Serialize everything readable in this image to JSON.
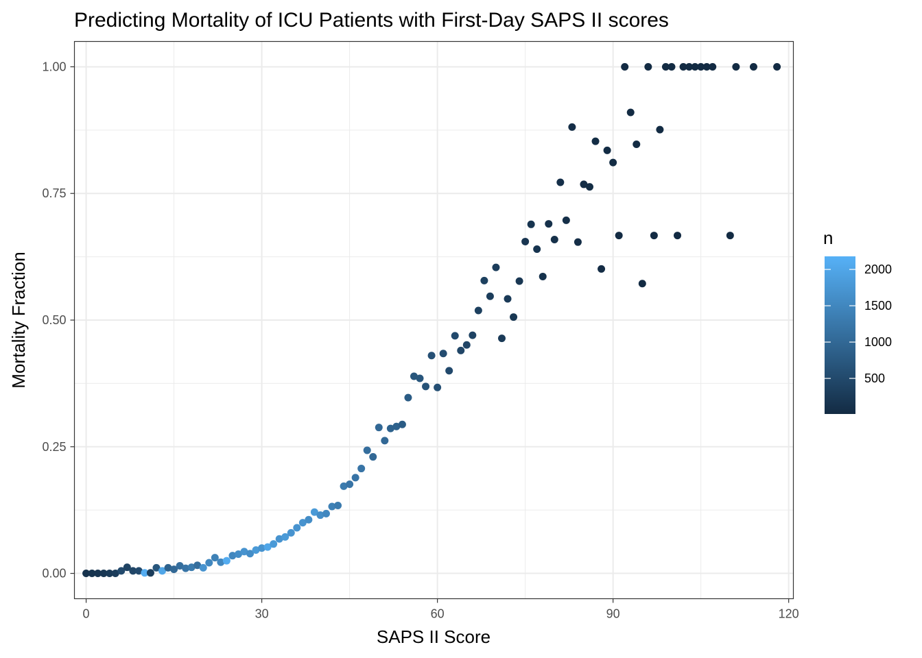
{
  "chart_data": {
    "type": "scatter",
    "title": "Predicting Mortality of ICU Patients with First-Day SAPS II scores",
    "xlabel": "SAPS II Score",
    "ylabel": "Mortality Fraction",
    "xlim": [
      -2,
      120.8
    ],
    "ylim": [
      -0.05,
      1.05
    ],
    "xticks": [
      0,
      30,
      60,
      90,
      120
    ],
    "xtick_labels": [
      "0",
      "30",
      "60",
      "90",
      "120"
    ],
    "yticks": [
      0,
      0.25,
      0.5,
      0.75,
      1
    ],
    "ytick_labels": [
      "0.00",
      "0.25",
      "0.50",
      "0.75",
      "1.00"
    ],
    "grid": true,
    "legend": {
      "title": "n",
      "position": "right",
      "type": "colorbar",
      "range": [
        10,
        2180
      ],
      "breaks": [
        500,
        1000,
        1500,
        2000
      ],
      "break_labels": [
        "500",
        "1000",
        "1500",
        "2000"
      ],
      "color_low": "#132b43",
      "color_high": "#56b1f7"
    },
    "points": [
      {
        "x": 0,
        "y": 0.0,
        "n": 120
      },
      {
        "x": 1,
        "y": 0.0,
        "n": 150
      },
      {
        "x": 2,
        "y": 0.0,
        "n": 180
      },
      {
        "x": 3,
        "y": 0.0,
        "n": 200
      },
      {
        "x": 4,
        "y": 0.0,
        "n": 250
      },
      {
        "x": 5,
        "y": 0.0,
        "n": 300
      },
      {
        "x": 6,
        "y": 0.005,
        "n": 500
      },
      {
        "x": 7,
        "y": 0.012,
        "n": 400
      },
      {
        "x": 8,
        "y": 0.005,
        "n": 450
      },
      {
        "x": 9,
        "y": 0.005,
        "n": 500
      },
      {
        "x": 10,
        "y": 0.001,
        "n": 2100
      },
      {
        "x": 11,
        "y": 0.001,
        "n": 300
      },
      {
        "x": 12,
        "y": 0.011,
        "n": 700
      },
      {
        "x": 13,
        "y": 0.005,
        "n": 2000
      },
      {
        "x": 14,
        "y": 0.011,
        "n": 900
      },
      {
        "x": 15,
        "y": 0.008,
        "n": 1000
      },
      {
        "x": 16,
        "y": 0.015,
        "n": 1100
      },
      {
        "x": 17,
        "y": 0.01,
        "n": 1200
      },
      {
        "x": 18,
        "y": 0.012,
        "n": 1300
      },
      {
        "x": 19,
        "y": 0.016,
        "n": 1100
      },
      {
        "x": 20,
        "y": 0.011,
        "n": 1700
      },
      {
        "x": 21,
        "y": 0.021,
        "n": 1500
      },
      {
        "x": 22,
        "y": 0.031,
        "n": 1400
      },
      {
        "x": 23,
        "y": 0.022,
        "n": 1500
      },
      {
        "x": 24,
        "y": 0.025,
        "n": 2100
      },
      {
        "x": 25,
        "y": 0.035,
        "n": 1500
      },
      {
        "x": 26,
        "y": 0.038,
        "n": 1600
      },
      {
        "x": 27,
        "y": 0.043,
        "n": 1700
      },
      {
        "x": 28,
        "y": 0.039,
        "n": 1600
      },
      {
        "x": 29,
        "y": 0.046,
        "n": 1800
      },
      {
        "x": 30,
        "y": 0.05,
        "n": 1700
      },
      {
        "x": 31,
        "y": 0.052,
        "n": 2000
      },
      {
        "x": 32,
        "y": 0.058,
        "n": 1800
      },
      {
        "x": 33,
        "y": 0.068,
        "n": 1700
      },
      {
        "x": 34,
        "y": 0.072,
        "n": 1800
      },
      {
        "x": 35,
        "y": 0.08,
        "n": 1700
      },
      {
        "x": 36,
        "y": 0.09,
        "n": 1700
      },
      {
        "x": 37,
        "y": 0.1,
        "n": 1700
      },
      {
        "x": 38,
        "y": 0.106,
        "n": 1600
      },
      {
        "x": 39,
        "y": 0.121,
        "n": 1800
      },
      {
        "x": 40,
        "y": 0.115,
        "n": 1600
      },
      {
        "x": 41,
        "y": 0.118,
        "n": 1500
      },
      {
        "x": 42,
        "y": 0.132,
        "n": 1400
      },
      {
        "x": 43,
        "y": 0.134,
        "n": 1300
      },
      {
        "x": 44,
        "y": 0.172,
        "n": 1300
      },
      {
        "x": 45,
        "y": 0.176,
        "n": 1200
      },
      {
        "x": 46,
        "y": 0.189,
        "n": 1200
      },
      {
        "x": 47,
        "y": 0.207,
        "n": 1200
      },
      {
        "x": 48,
        "y": 0.243,
        "n": 1100
      },
      {
        "x": 49,
        "y": 0.23,
        "n": 1000
      },
      {
        "x": 50,
        "y": 0.288,
        "n": 1000
      },
      {
        "x": 51,
        "y": 0.262,
        "n": 1000
      },
      {
        "x": 52,
        "y": 0.286,
        "n": 900
      },
      {
        "x": 53,
        "y": 0.29,
        "n": 900
      },
      {
        "x": 54,
        "y": 0.294,
        "n": 800
      },
      {
        "x": 55,
        "y": 0.347,
        "n": 800
      },
      {
        "x": 56,
        "y": 0.389,
        "n": 700
      },
      {
        "x": 57,
        "y": 0.385,
        "n": 700
      },
      {
        "x": 58,
        "y": 0.369,
        "n": 650
      },
      {
        "x": 59,
        "y": 0.43,
        "n": 600
      },
      {
        "x": 60,
        "y": 0.367,
        "n": 600
      },
      {
        "x": 61,
        "y": 0.434,
        "n": 550
      },
      {
        "x": 62,
        "y": 0.4,
        "n": 500
      },
      {
        "x": 63,
        "y": 0.469,
        "n": 500
      },
      {
        "x": 64,
        "y": 0.44,
        "n": 450
      },
      {
        "x": 65,
        "y": 0.451,
        "n": 450
      },
      {
        "x": 66,
        "y": 0.47,
        "n": 400
      },
      {
        "x": 67,
        "y": 0.519,
        "n": 350
      },
      {
        "x": 68,
        "y": 0.578,
        "n": 350
      },
      {
        "x": 69,
        "y": 0.547,
        "n": 300
      },
      {
        "x": 70,
        "y": 0.604,
        "n": 300
      },
      {
        "x": 71,
        "y": 0.464,
        "n": 250
      },
      {
        "x": 72,
        "y": 0.542,
        "n": 250
      },
      {
        "x": 73,
        "y": 0.506,
        "n": 200
      },
      {
        "x": 74,
        "y": 0.577,
        "n": 200
      },
      {
        "x": 75,
        "y": 0.655,
        "n": 180
      },
      {
        "x": 76,
        "y": 0.689,
        "n": 150
      },
      {
        "x": 77,
        "y": 0.64,
        "n": 150
      },
      {
        "x": 78,
        "y": 0.586,
        "n": 120
      },
      {
        "x": 79,
        "y": 0.69,
        "n": 110
      },
      {
        "x": 80,
        "y": 0.659,
        "n": 100
      },
      {
        "x": 81,
        "y": 0.772,
        "n": 80
      },
      {
        "x": 82,
        "y": 0.697,
        "n": 70
      },
      {
        "x": 83,
        "y": 0.881,
        "n": 60
      },
      {
        "x": 84,
        "y": 0.654,
        "n": 60
      },
      {
        "x": 85,
        "y": 0.768,
        "n": 50
      },
      {
        "x": 86,
        "y": 0.763,
        "n": 40
      },
      {
        "x": 87,
        "y": 0.853,
        "n": 35
      },
      {
        "x": 88,
        "y": 0.601,
        "n": 30
      },
      {
        "x": 89,
        "y": 0.835,
        "n": 25
      },
      {
        "x": 90,
        "y": 0.811,
        "n": 20
      },
      {
        "x": 91,
        "y": 0.667,
        "n": 15
      },
      {
        "x": 92,
        "y": 1.0,
        "n": 10
      },
      {
        "x": 93,
        "y": 0.91,
        "n": 12
      },
      {
        "x": 94,
        "y": 0.847,
        "n": 12
      },
      {
        "x": 95,
        "y": 0.572,
        "n": 10
      },
      {
        "x": 96,
        "y": 1.0,
        "n": 8
      },
      {
        "x": 97,
        "y": 0.667,
        "n": 6
      },
      {
        "x": 98,
        "y": 0.876,
        "n": 8
      },
      {
        "x": 99,
        "y": 1.0,
        "n": 5
      },
      {
        "x": 100,
        "y": 1.0,
        "n": 4
      },
      {
        "x": 101,
        "y": 0.667,
        "n": 3
      },
      {
        "x": 102,
        "y": 1.0,
        "n": 3
      },
      {
        "x": 103,
        "y": 1.0,
        "n": 3
      },
      {
        "x": 104,
        "y": 1.0,
        "n": 2
      },
      {
        "x": 105,
        "y": 1.0,
        "n": 2
      },
      {
        "x": 106,
        "y": 1.0,
        "n": 2
      },
      {
        "x": 107,
        "y": 1.0,
        "n": 2
      },
      {
        "x": 110,
        "y": 0.667,
        "n": 3
      },
      {
        "x": 111,
        "y": 1.0,
        "n": 1
      },
      {
        "x": 114,
        "y": 1.0,
        "n": 1
      },
      {
        "x": 118,
        "y": 1.0,
        "n": 1
      }
    ]
  }
}
